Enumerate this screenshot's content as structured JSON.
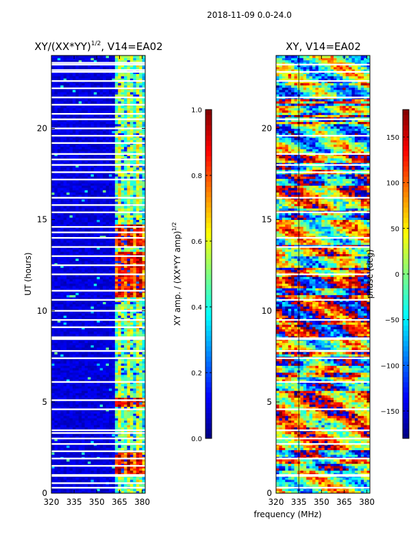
{
  "figure": {
    "suptitle": "2018-11-09 0.0-24.0",
    "xlabel_shared": "frequency (MHz)"
  },
  "colors": {
    "jet": [
      "#00007f",
      "#0000ff",
      "#0080ff",
      "#00ffff",
      "#80ff80",
      "#ffff00",
      "#ff8000",
      "#ff0000",
      "#7f0000"
    ],
    "background": "#ffffff",
    "gap": "#ffffff"
  },
  "chart_data": [
    {
      "type": "heatmap",
      "title_prefix": "XY/(XX*YY)",
      "title_power": "1/2",
      "title_suffix": ", V14=EA02",
      "xlabel": "",
      "ylabel": "UT (hours)",
      "xlim": [
        320,
        382
      ],
      "ylim": [
        0,
        24
      ],
      "xticks": [
        "320",
        "335",
        "350",
        "365",
        "380"
      ],
      "xtick_values": [
        320,
        335,
        350,
        365,
        380
      ],
      "yticks": [
        "0",
        "5",
        "10",
        "15",
        "20"
      ],
      "ytick_values": [
        0,
        5,
        10,
        15,
        20
      ],
      "description": "Normalized XY amplitude vs frequency and UT; mostly near 0 below ~362 MHz, elevated 0.3-0.9 in band 362-382 MHz with peaks near 14 h and 1-2 h",
      "colorbar": {
        "label_main": "XY amp. / (XX*YY amp)",
        "label_power": "1/2",
        "range": [
          0.0,
          1.0
        ],
        "ticks": [
          "0.0",
          "0.2",
          "0.4",
          "0.6",
          "0.8",
          "1.0"
        ],
        "tick_values": [
          0.0,
          0.2,
          0.4,
          0.6,
          0.8,
          1.0
        ]
      },
      "gaps_hours": [
        0.3,
        0.55,
        0.95,
        1.0,
        1.5,
        1.9,
        2.3,
        2.7,
        3.0,
        3.3,
        3.45,
        4.6,
        5.1,
        6.1,
        7.4,
        7.8,
        8.45,
        8.5,
        8.55,
        9.1,
        9.5,
        10.0,
        10.6,
        11.1,
        12.0,
        12.5,
        13.0,
        13.5,
        14.0,
        14.3,
        14.6,
        15.4,
        15.8,
        16.2,
        17.2,
        17.6,
        18.0,
        18.3,
        18.6,
        19.2,
        19.6,
        20.0,
        20.5,
        20.8,
        21.3,
        21.7,
        22.2,
        22.6,
        23.1,
        23.2,
        23.5,
        23.6
      ],
      "band_mhz": [
        362,
        382
      ],
      "peak_hours": [
        [
          13.5,
          14.8
        ],
        [
          10.7,
          13.3
        ],
        [
          4.7,
          5.3
        ],
        [
          1.0,
          2.3
        ]
      ]
    },
    {
      "type": "heatmap",
      "title": "XY, V14=EA02",
      "xlabel": "frequency (MHz)",
      "ylabel": "",
      "xlim": [
        320,
        382
      ],
      "ylim": [
        0,
        24
      ],
      "xticks": [
        "320",
        "335",
        "350",
        "365",
        "380"
      ],
      "xtick_values": [
        320,
        335,
        350,
        365,
        380
      ],
      "yticks": [
        "0",
        "5",
        "10",
        "15",
        "20"
      ],
      "ytick_values": [
        0,
        5,
        10,
        15,
        20
      ],
      "description": "XY phase vs frequency and UT; values span -180 to 180 deg with horizontal banded structure",
      "colorbar": {
        "label": "phase (deg)",
        "range": [
          -180,
          180
        ],
        "ticks": [
          "−150",
          "−100",
          "−50",
          "0",
          "50",
          "100",
          "150"
        ],
        "tick_values": [
          -150,
          -100,
          -50,
          0,
          50,
          100,
          150
        ]
      },
      "gaps_hours": [
        0.3,
        0.95,
        1.0,
        1.9,
        2.7,
        3.0,
        3.45,
        4.6,
        6.1,
        7.4,
        7.8,
        8.45,
        8.5,
        9.5,
        10.6,
        12.0,
        13.5,
        14.0,
        15.4,
        16.2,
        17.6,
        18.0,
        18.6,
        19.6,
        20.5,
        21.7,
        22.6,
        23.1,
        23.5
      ],
      "vline_mhz": 335
    }
  ]
}
